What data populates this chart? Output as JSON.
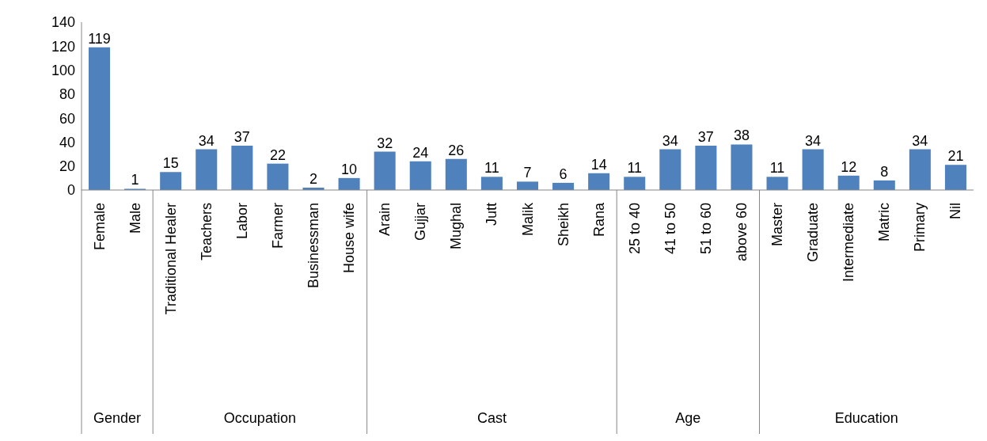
{
  "chart_data": {
    "type": "bar",
    "categories": [
      "Female",
      "Male",
      "Traditional Healer",
      "Teachers",
      "Labor",
      "Farmer",
      "Businessman",
      "House wife",
      "Arain",
      "Gujjar",
      "Mughal",
      "Jutt",
      "Malik",
      "Sheikh",
      "Rana",
      "25 to 40",
      "41 to 50",
      "51 to 60",
      "above 60",
      "Master",
      "Graduate",
      "Intermediate",
      "Matric",
      "Primary",
      "Nil"
    ],
    "values": [
      119,
      1,
      15,
      34,
      37,
      22,
      2,
      10,
      32,
      24,
      26,
      11,
      7,
      6,
      14,
      11,
      34,
      37,
      38,
      11,
      34,
      12,
      8,
      34,
      21
    ],
    "color": "#4f81bd",
    "ylim": [
      0,
      140
    ],
    "yticks": [
      0,
      20,
      40,
      60,
      80,
      100,
      120,
      140
    ],
    "grid": false,
    "legend": false,
    "data_labels": true,
    "annotations": [
      "Gender",
      "Occupation",
      "Cast",
      "Age",
      "Education"
    ]
  }
}
